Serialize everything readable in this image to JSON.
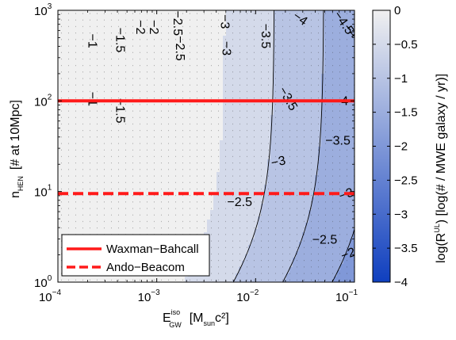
{
  "chart_data": {
    "type": "heatmap",
    "x_scale": "log",
    "y_scale": "log",
    "xlim": [
      0.0001,
      0.1
    ],
    "ylim": [
      1,
      1000
    ],
    "x_ticks": [
      {
        "base": "10",
        "exp": "−4",
        "value": 0.0001
      },
      {
        "base": "10",
        "exp": "−3",
        "value": 0.001
      },
      {
        "base": "10",
        "exp": "−2",
        "value": 0.01
      },
      {
        "base": "10",
        "exp": "−1",
        "value": 0.1
      }
    ],
    "y_ticks": [
      {
        "base": "10",
        "exp": "0",
        "value": 1
      },
      {
        "base": "10",
        "exp": "1",
        "value": 10
      },
      {
        "base": "10",
        "exp": "2",
        "value": 100
      },
      {
        "base": "10",
        "exp": "3",
        "value": 1000
      }
    ],
    "xlabel": {
      "main": "E",
      "sub": "GW",
      "sup": "iso",
      "unit_open": "[M",
      "unit_sub": "sun",
      "unit_close": "c²]"
    },
    "ylabel": {
      "main": "n",
      "sub": "HEN",
      "unit": "[# at 10Mpc]"
    },
    "colorbar": {
      "range": [
        -4,
        0
      ],
      "ticks": [
        "0",
        "−0.5",
        "−1",
        "−1.5",
        "−2",
        "−2.5",
        "−3",
        "−3.5",
        "−4"
      ],
      "tick_values": [
        0,
        -0.5,
        -1,
        -1.5,
        -2,
        -2.5,
        -3,
        -3.5,
        -4
      ],
      "label_main": "log(R",
      "label_sup": "UL",
      "label_rest": ") [log(# / MWE galaxy / yr)]",
      "color_high": "#f0f0f0",
      "color_low": "#0f3fbf"
    },
    "contour_levels": [
      -1,
      -1.5,
      -2,
      -2.5,
      -3,
      -3.5,
      -4,
      -4.5
    ],
    "contour_labels": [
      {
        "text": "−1",
        "x": 0.00022,
        "y": 460,
        "rotate": 90
      },
      {
        "text": "−1",
        "x": 0.00022,
        "y": 105,
        "rotate": 90
      },
      {
        "text": "−1.5",
        "x": 0.00042,
        "y": 470,
        "rotate": 90
      },
      {
        "text": "−1.5",
        "x": 0.00042,
        "y": 78,
        "rotate": 90
      },
      {
        "text": "−2",
        "x": 0.00067,
        "y": 650,
        "rotate": 90
      },
      {
        "text": "−2",
        "x": 0.00092,
        "y": 650,
        "rotate": 90
      },
      {
        "text": "−2.5",
        "x": 0.0016,
        "y": 720,
        "rotate": 90
      },
      {
        "text": "−2.5",
        "x": 0.0017,
        "y": 380,
        "rotate": 90
      },
      {
        "text": "−3",
        "x": 0.0048,
        "y": 750,
        "rotate": 90
      },
      {
        "text": "−3",
        "x": 0.005,
        "y": 380,
        "rotate": 90
      },
      {
        "text": "−3.5",
        "x": 0.0125,
        "y": 520,
        "rotate": 90
      },
      {
        "text": "−3.5",
        "x": 0.021,
        "y": 105,
        "rotate": 60
      },
      {
        "text": "−4",
        "x": 0.028,
        "y": 800,
        "rotate": 35
      },
      {
        "text": "−4",
        "x": 0.073,
        "y": 98,
        "rotate": 0
      },
      {
        "text": "−4.5",
        "x": 0.077,
        "y": 720,
        "rotate": 55
      },
      {
        "text": "−4",
        "x": 0.091,
        "y": 590,
        "rotate": 45
      },
      {
        "text": "−3.5",
        "x": 0.068,
        "y": 36,
        "rotate": 0
      },
      {
        "text": "−3",
        "x": 0.017,
        "y": 21,
        "rotate": -12
      },
      {
        "text": "−3",
        "x": 0.083,
        "y": 9.2,
        "rotate": -20
      },
      {
        "text": "−2.5",
        "x": 0.0069,
        "y": 7.5,
        "rotate": 0
      },
      {
        "text": "−2.5",
        "x": 0.05,
        "y": 2.9,
        "rotate": 0
      },
      {
        "text": "−2.",
        "x": 0.09,
        "y": 2.05,
        "rotate": -20
      },
      {
        "text": "−2",
        "x": 0.0027,
        "y": 2.05,
        "rotate": 0
      }
    ],
    "hlines": [
      {
        "name": "Waxman−Bahcall",
        "y": 100,
        "color": "#ff1a1a",
        "style": "solid"
      },
      {
        "name": "Ando−Beacom",
        "y": 9.5,
        "color": "#ff1a1a",
        "style": "dashed"
      }
    ],
    "legend": {
      "position": "bottom-left",
      "entries": [
        {
          "label": "Waxman−Bahcall",
          "style": "solid",
          "color": "#ff1a1a"
        },
        {
          "label": "Ando−Beacom",
          "style": "dashed",
          "color": "#ff1a1a"
        }
      ]
    }
  }
}
